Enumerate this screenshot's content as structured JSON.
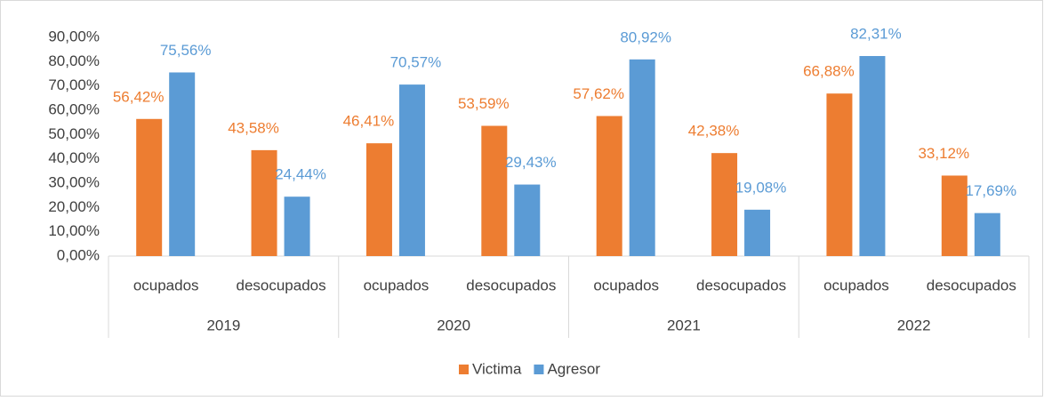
{
  "chart_data": {
    "type": "bar",
    "categories": [
      "ocupados",
      "desocupados",
      "ocupados",
      "desocupados",
      "ocupados",
      "desocupados",
      "ocupados",
      "desocupados"
    ],
    "groups": [
      "2019",
      "2020",
      "2021",
      "2022"
    ],
    "series": [
      {
        "name": "Victima",
        "color": "#ED7D31",
        "values": [
          56.42,
          43.58,
          46.41,
          53.59,
          57.62,
          42.38,
          66.88,
          33.12
        ],
        "value_labels": [
          "56,42%",
          "43,58%",
          "46,41%",
          "53,59%",
          "57,62%",
          "42,38%",
          "66,88%",
          "33,12%"
        ]
      },
      {
        "name": "Agresor",
        "color": "#5B9BD5",
        "values": [
          75.56,
          24.44,
          70.57,
          29.43,
          80.92,
          19.08,
          82.31,
          17.69
        ],
        "value_labels": [
          "75,56%",
          "24,44%",
          "70,57%",
          "29,43%",
          "80,92%",
          "19,08%",
          "82,31%",
          "17,69%"
        ]
      }
    ],
    "ylim": [
      0,
      90
    ],
    "yticks": [
      {
        "value": 0,
        "label": "0,00%"
      },
      {
        "value": 10,
        "label": "10,00%"
      },
      {
        "value": 20,
        "label": "20,00%"
      },
      {
        "value": 30,
        "label": "30,00%"
      },
      {
        "value": 40,
        "label": "40,00%"
      },
      {
        "value": 50,
        "label": "50,00%"
      },
      {
        "value": 60,
        "label": "60,00%"
      },
      {
        "value": 70,
        "label": "70,00%"
      },
      {
        "value": 80,
        "label": "80,00%"
      },
      {
        "value": 90,
        "label": "90,00%"
      }
    ],
    "grid": false,
    "legend": "bottom"
  }
}
